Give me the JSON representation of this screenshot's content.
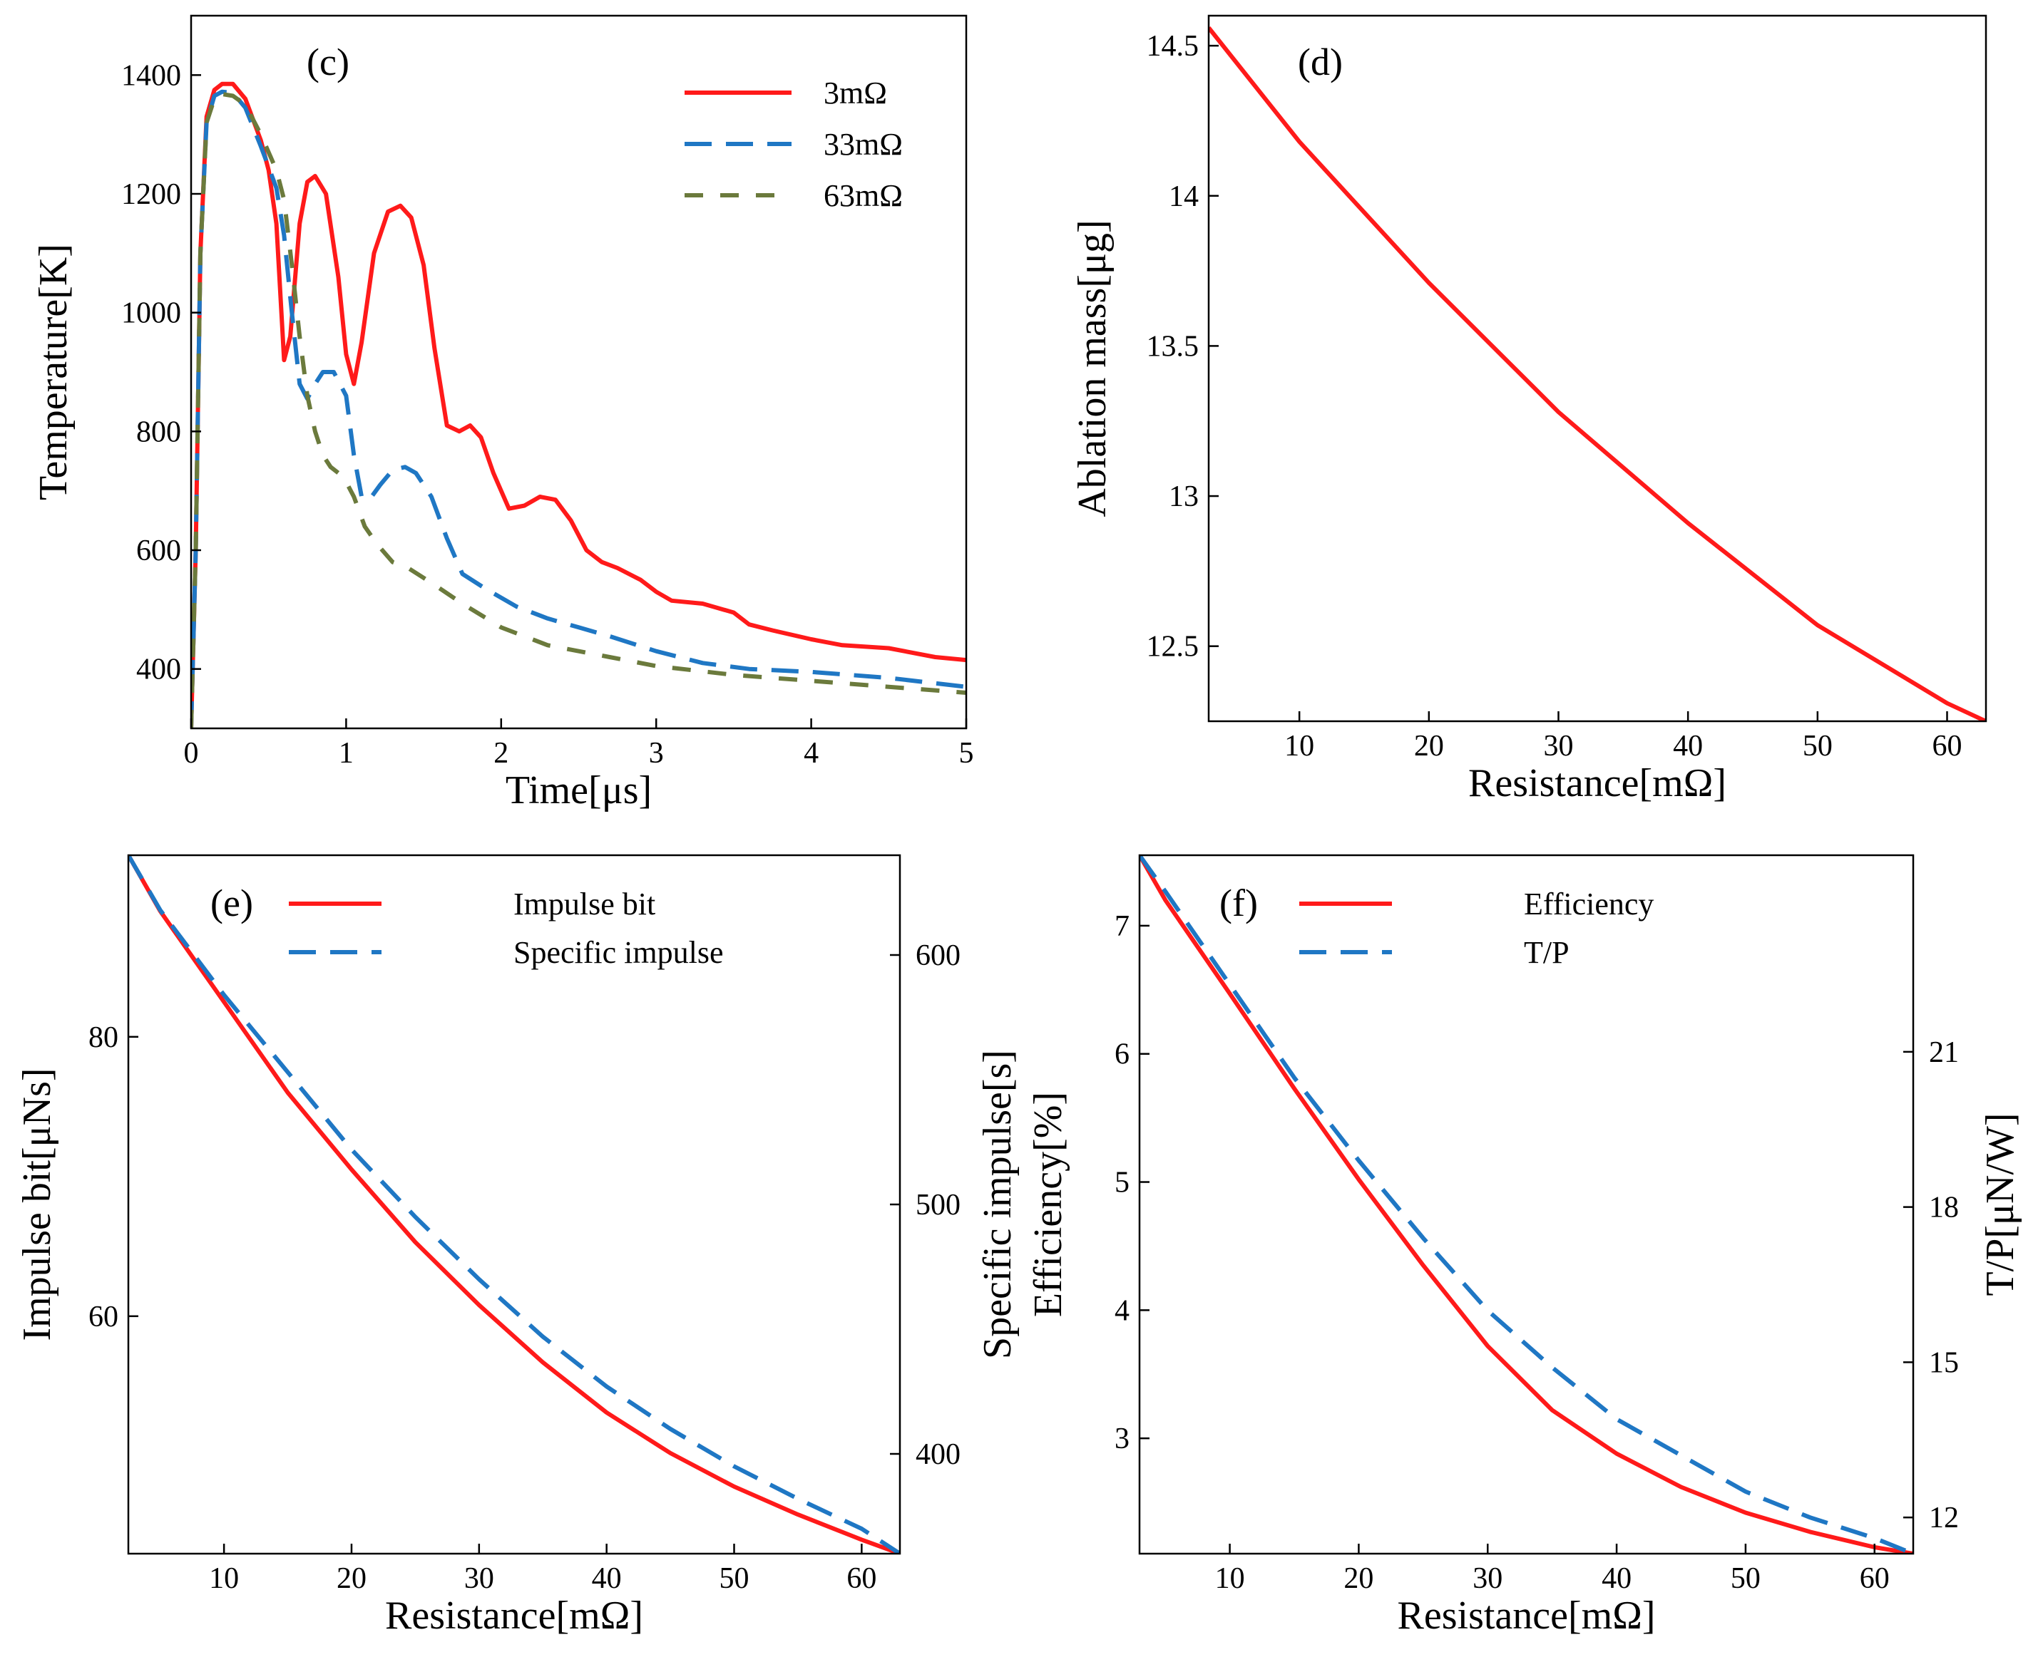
{
  "colors": {
    "red": "#ff1a1a",
    "blue": "#1f77c4",
    "olive": "#6b7a3c",
    "axis": "#000000"
  },
  "chart_data": [
    {
      "type": "line",
      "panel": "(c)",
      "xlabel": "Time[μs]",
      "ylabel": "Temperature[K]",
      "xlim": [
        0,
        5
      ],
      "ylim": [
        300,
        1500
      ],
      "xticks": [
        0,
        1,
        2,
        3,
        4,
        5
      ],
      "yticks": [
        400,
        600,
        800,
        1000,
        1200,
        1400
      ],
      "legend_position": "top-right",
      "series": [
        {
          "name": " 3mΩ",
          "color": "red",
          "dash": "solid",
          "x": [
            0,
            0.03,
            0.06,
            0.1,
            0.15,
            0.2,
            0.27,
            0.35,
            0.45,
            0.5,
            0.55,
            0.6,
            0.64,
            0.7,
            0.75,
            0.8,
            0.87,
            0.95,
            1.0,
            1.05,
            1.1,
            1.18,
            1.27,
            1.35,
            1.42,
            1.5,
            1.57,
            1.65,
            1.73,
            1.8,
            1.87,
            1.95,
            2.05,
            2.15,
            2.25,
            2.35,
            2.45,
            2.55,
            2.65,
            2.75,
            2.9,
            3.0,
            3.1,
            3.3,
            3.5,
            3.6,
            3.75,
            4.0,
            4.2,
            4.5,
            4.8,
            5.0
          ],
          "y": [
            300,
            600,
            1100,
            1330,
            1375,
            1385,
            1385,
            1360,
            1290,
            1240,
            1150,
            920,
            960,
            1150,
            1220,
            1230,
            1200,
            1060,
            930,
            880,
            950,
            1100,
            1170,
            1180,
            1160,
            1080,
            940,
            810,
            800,
            810,
            790,
            730,
            670,
            675,
            690,
            685,
            650,
            600,
            580,
            570,
            550,
            530,
            515,
            510,
            495,
            475,
            465,
            450,
            440,
            435,
            420,
            415
          ]
        },
        {
          "name": "33mΩ",
          "color": "blue",
          "dash": "long",
          "x": [
            0,
            0.03,
            0.06,
            0.1,
            0.15,
            0.2,
            0.27,
            0.35,
            0.45,
            0.55,
            0.6,
            0.65,
            0.7,
            0.75,
            0.8,
            0.85,
            0.92,
            1.0,
            1.05,
            1.1,
            1.15,
            1.22,
            1.3,
            1.38,
            1.45,
            1.55,
            1.65,
            1.75,
            1.9,
            2.1,
            2.3,
            2.5,
            2.7,
            3.0,
            3.3,
            3.6,
            4.0,
            4.5,
            5.0
          ],
          "y": [
            300,
            600,
            1100,
            1320,
            1365,
            1372,
            1370,
            1345,
            1280,
            1210,
            1130,
            1000,
            880,
            855,
            880,
            900,
            900,
            860,
            760,
            690,
            685,
            710,
            735,
            740,
            730,
            690,
            620,
            560,
            535,
            505,
            485,
            470,
            455,
            430,
            410,
            400,
            395,
            385,
            370
          ]
        },
        {
          "name": "63mΩ",
          "color": "olive",
          "dash": "short",
          "x": [
            0,
            0.03,
            0.06,
            0.1,
            0.15,
            0.2,
            0.27,
            0.35,
            0.45,
            0.55,
            0.6,
            0.65,
            0.7,
            0.75,
            0.8,
            0.85,
            0.9,
            0.95,
            1.0,
            1.05,
            1.12,
            1.2,
            1.3,
            1.4,
            1.55,
            1.75,
            2.0,
            2.3,
            2.7,
            3.0,
            3.5,
            4.0,
            4.5,
            5.0
          ],
          "y": [
            300,
            600,
            1100,
            1320,
            1360,
            1368,
            1365,
            1350,
            1300,
            1240,
            1190,
            1080,
            960,
            860,
            800,
            760,
            740,
            730,
            715,
            690,
            640,
            610,
            580,
            570,
            545,
            510,
            470,
            440,
            420,
            405,
            390,
            380,
            370,
            360
          ]
        }
      ]
    },
    {
      "type": "line",
      "panel": "(d)",
      "xlabel": "Resistance[mΩ]",
      "ylabel": "Ablation mass[μg]",
      "xlim": [
        3,
        63
      ],
      "ylim": [
        12.25,
        14.6
      ],
      "xticks": [
        10,
        20,
        30,
        40,
        50,
        60
      ],
      "yticks": [
        12.5,
        13,
        13.5,
        14,
        14.5
      ],
      "series": [
        {
          "name": "Ablation mass",
          "color": "red",
          "dash": "solid",
          "x": [
            3,
            10,
            20,
            30,
            40,
            50,
            60,
            63
          ],
          "y": [
            14.56,
            14.18,
            13.71,
            13.28,
            12.91,
            12.57,
            12.31,
            12.25
          ]
        }
      ]
    },
    {
      "type": "line",
      "panel": "(e)",
      "xlabel": "Resistance[mΩ]",
      "ylabel": "Impulse bit[μNs]",
      "y2label": "Specific impulse[s]",
      "xlim": [
        2.5,
        63
      ],
      "ylim": [
        43,
        93
      ],
      "y2lim": [
        360,
        640
      ],
      "xticks": [
        10,
        20,
        30,
        40,
        50,
        60
      ],
      "yticks": [
        60,
        80
      ],
      "y2ticks": [
        400,
        500,
        600
      ],
      "legend_position": "top-center",
      "series": [
        {
          "name": "Impulse bit",
          "color": "red",
          "dash": "solid",
          "axis": "left",
          "x": [
            2.5,
            5,
            10,
            15,
            20,
            25,
            30,
            35,
            40,
            45,
            50,
            55,
            60,
            63
          ],
          "y": [
            93,
            89,
            82.5,
            76,
            70.5,
            65.3,
            60.8,
            56.7,
            53.1,
            50.2,
            47.8,
            45.8,
            44.0,
            43
          ]
        },
        {
          "name": "Specific impulse",
          "color": "blue",
          "dash": "long",
          "axis": "right",
          "x": [
            2.5,
            5,
            10,
            15,
            20,
            25,
            30,
            35,
            40,
            45,
            50,
            55,
            60,
            63
          ],
          "y": [
            640,
            618,
            584,
            553,
            522,
            495,
            470,
            447,
            427,
            410,
            395,
            382,
            370,
            360
          ]
        }
      ]
    },
    {
      "type": "line",
      "panel": "(f)",
      "xlabel": "Resistance[mΩ]",
      "ylabel": "Efficiency[%]",
      "y2label": "T/P[μN/W]",
      "xlim": [
        3,
        63
      ],
      "ylim": [
        2.1,
        7.55
      ],
      "y2lim": [
        11.3,
        24.8
      ],
      "xticks": [
        10,
        20,
        30,
        40,
        50,
        60
      ],
      "yticks": [
        3,
        4,
        5,
        6,
        7
      ],
      "y2ticks": [
        12,
        15,
        18,
        21
      ],
      "legend_position": "top-left",
      "series": [
        {
          "name": "Efficiency",
          "color": "red",
          "dash": "solid",
          "axis": "left",
          "x": [
            3,
            5,
            10,
            15,
            20,
            25,
            30,
            35,
            40,
            45,
            50,
            55,
            60,
            63
          ],
          "y": [
            7.55,
            7.2,
            6.47,
            5.73,
            5.02,
            4.35,
            3.72,
            3.22,
            2.88,
            2.62,
            2.42,
            2.27,
            2.15,
            2.1
          ]
        },
        {
          "name": "T/P",
          "color": "blue",
          "dash": "long",
          "axis": "right",
          "x": [
            3,
            5,
            10,
            15,
            20,
            25,
            30,
            35,
            40,
            45,
            50,
            55,
            60,
            63
          ],
          "y": [
            24.8,
            24.1,
            22.3,
            20.5,
            18.9,
            17.4,
            16.0,
            14.9,
            13.9,
            13.2,
            12.5,
            12.0,
            11.6,
            11.3
          ]
        }
      ]
    }
  ]
}
